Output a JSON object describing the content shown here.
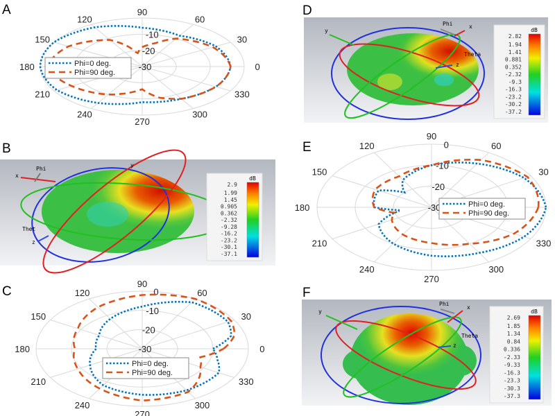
{
  "panel_labels": {
    "a": "A",
    "b": "B",
    "c": "C",
    "d": "D",
    "e": "E",
    "f": "F"
  },
  "colors": {
    "phi0": "#0072BD",
    "phi90": "#D95319",
    "grid": "#d9d9d9"
  },
  "chart_data": [
    {
      "panel": "A",
      "type": "polar",
      "rlim": [
        -30,
        0
      ],
      "r_ticks": [
        "-10",
        "-20",
        "-30"
      ],
      "r_tick_values": [
        -10,
        -20,
        -30
      ],
      "theta_ticks": [
        "0",
        "30",
        "60",
        "90",
        "120",
        "150",
        "180",
        "210",
        "240",
        "270",
        "300",
        "330"
      ],
      "grid": true,
      "legend_position": "center-left",
      "series": [
        {
          "name": "Phi=0 deg.",
          "style": "dotted",
          "theta": [
            0,
            30,
            60,
            90,
            120,
            150,
            180,
            210,
            240,
            270,
            300,
            330
          ],
          "values": [
            -4,
            -5,
            -8,
            -6,
            -2,
            0,
            0,
            -1,
            -4,
            -8,
            -7,
            -5
          ]
        },
        {
          "name": "Phi=90 deg.",
          "style": "dashed",
          "theta": [
            0,
            30,
            60,
            75,
            90,
            100,
            110,
            120,
            150,
            180,
            210,
            240,
            255,
            270,
            285,
            300,
            330
          ],
          "values": [
            -4,
            -6,
            -10,
            -15,
            -18,
            -22,
            -16,
            -11,
            -5,
            -2,
            -6,
            -10,
            -13,
            -16,
            -10,
            -7,
            -5
          ]
        }
      ]
    },
    {
      "panel": "C",
      "type": "polar",
      "rlim": [
        -30,
        0
      ],
      "r_ticks": [
        "0",
        "-10",
        "-20",
        "-30"
      ],
      "r_tick_values": [
        0,
        -10,
        -20,
        -30
      ],
      "theta_ticks": [
        "0",
        "30",
        "60",
        "90",
        "120",
        "150",
        "180",
        "210",
        "240",
        "270",
        "300",
        "330"
      ],
      "grid": true,
      "legend_position": "center-bottom",
      "series": [
        {
          "name": "Phi=0 deg.",
          "style": "dotted",
          "theta": [
            0,
            15,
            30,
            60,
            90,
            120,
            150,
            180,
            210,
            240,
            270,
            300,
            330,
            345
          ],
          "values": [
            -10,
            -4,
            -2,
            -2,
            -8,
            -12,
            -16,
            -17,
            -13,
            -8,
            -6,
            -5,
            -5,
            -8
          ]
        },
        {
          "name": "Phi=90 deg.",
          "style": "dashed",
          "theta": [
            0,
            15,
            30,
            60,
            90,
            120,
            150,
            180,
            210,
            240,
            270,
            300,
            330,
            345
          ],
          "values": [
            -7,
            -3,
            -1,
            0,
            -2,
            -5,
            -9,
            -11,
            -9,
            -6,
            -3,
            -4,
            -11,
            -13
          ]
        }
      ]
    },
    {
      "panel": "E",
      "type": "polar",
      "rlim": [
        -30,
        0
      ],
      "r_ticks": [
        "0",
        "-10",
        "-20",
        "-30"
      ],
      "r_tick_values": [
        0,
        -10,
        -20,
        -30
      ],
      "theta_ticks": [
        "0",
        "30",
        "60",
        "90",
        "120",
        "150",
        "180",
        "210",
        "240",
        "270",
        "300",
        "330"
      ],
      "grid": true,
      "legend_position": "center-right",
      "series": [
        {
          "name": "Phi=0 deg.",
          "style": "dotted",
          "theta": [
            0,
            30,
            60,
            90,
            120,
            135,
            150,
            180,
            190,
            210,
            240,
            270,
            300,
            330
          ],
          "values": [
            0,
            -2,
            -6,
            -10,
            -15,
            -20,
            -14,
            -15,
            -22,
            -14,
            -10,
            -7,
            -5,
            -2
          ]
        },
        {
          "name": "Phi=90 deg.",
          "style": "dashed",
          "theta": [
            0,
            30,
            60,
            90,
            120,
            150,
            180,
            195,
            210,
            240,
            270,
            300,
            330
          ],
          "values": [
            -2,
            -1,
            -4,
            -10,
            -13,
            -13,
            -15,
            -20,
            -18,
            -15,
            -13,
            -10,
            -5
          ]
        }
      ]
    }
  ],
  "patterns_3d": {
    "b": {
      "unit": "dB",
      "axes": {
        "x": "x",
        "y": "y",
        "z": "z",
        "phi": "Phi",
        "theta": "Thet"
      },
      "scale": [
        "2.9",
        "1.99",
        "1.45",
        "0.905",
        "0.362",
        "-2.32",
        "-9.28",
        "-16.2",
        "-23.2",
        "-30.1",
        "-37.1"
      ]
    },
    "d": {
      "unit": "dB",
      "axes": {
        "x": "x",
        "y": "y",
        "z": "z",
        "phi": "Phi",
        "theta": "Theta"
      },
      "scale": [
        "2.82",
        "1.94",
        "1.41",
        "0.881",
        "0.352",
        "-2.32",
        "-9.3",
        "-16.3",
        "-23.2",
        "-30.2",
        "-37.2"
      ]
    },
    "f": {
      "unit": "dB",
      "axes": {
        "x": "x",
        "y": "y",
        "z": "z",
        "phi": "Phi",
        "theta": "Theta"
      },
      "scale": [
        "2.69",
        "1.85",
        "1.34",
        "0.84",
        "0.336",
        "-2.33",
        "-9.33",
        "-16.3",
        "-23.3",
        "-30.3",
        "-37.3"
      ]
    }
  }
}
